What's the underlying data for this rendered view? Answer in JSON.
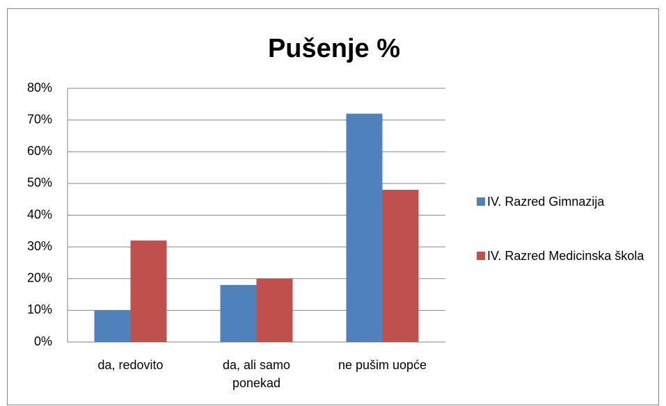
{
  "chart_data": {
    "type": "bar",
    "title": "Pušenje %",
    "categories": [
      "da, redovito",
      "da, ali samo ponekad",
      "ne pušim uopće"
    ],
    "series": [
      {
        "name": "IV. Razred Gimnazija",
        "color": "#4f81bd",
        "values": [
          10,
          18,
          72
        ]
      },
      {
        "name": "IV. Razred Medicinska škola",
        "color": "#c0504d",
        "values": [
          32,
          20,
          48
        ]
      }
    ],
    "ylim": [
      0,
      80
    ],
    "yticks": [
      {
        "value": 0,
        "label": "0%"
      },
      {
        "value": 10,
        "label": "10%"
      },
      {
        "value": 20,
        "label": "20%"
      },
      {
        "value": 30,
        "label": "30%"
      },
      {
        "value": 40,
        "label": "40%"
      },
      {
        "value": 50,
        "label": "50%"
      },
      {
        "value": 60,
        "label": "60%"
      },
      {
        "value": 70,
        "label": "70%"
      },
      {
        "value": 80,
        "label": "80%"
      }
    ],
    "grid": true,
    "legend": "right"
  }
}
